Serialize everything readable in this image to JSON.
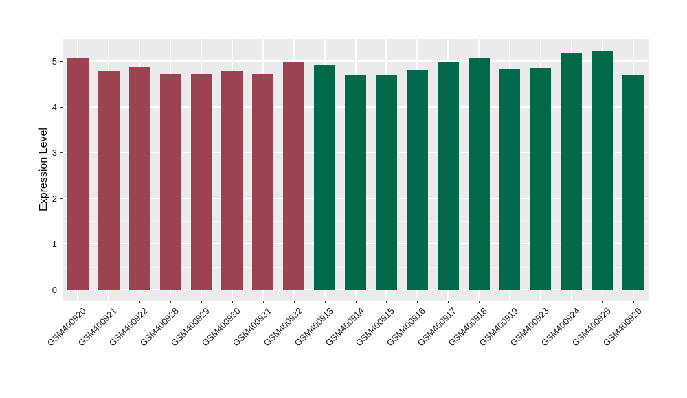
{
  "chart_data": {
    "type": "bar",
    "title": "",
    "xlabel": "",
    "ylabel": "Expression Level",
    "ylim": [
      0,
      5.46
    ],
    "yticks": [
      0,
      1,
      2,
      3,
      4,
      5
    ],
    "minor_yticks": [
      0.5,
      1.5,
      2.5,
      3.5,
      4.5
    ],
    "grid": true,
    "legend_position": "none",
    "categories": [
      "GSM400920",
      "GSM400921",
      "GSM400922",
      "GSM400928",
      "GSM400929",
      "GSM400930",
      "GSM400931",
      "GSM400932",
      "GSM400913",
      "GSM400914",
      "GSM400915",
      "GSM400916",
      "GSM400917",
      "GSM400918",
      "GSM400919",
      "GSM400923",
      "GSM400924",
      "GSM400925",
      "GSM400926"
    ],
    "values": [
      5.07,
      4.78,
      4.86,
      4.71,
      4.72,
      4.78,
      4.71,
      4.97,
      4.91,
      4.7,
      4.68,
      4.8,
      4.98,
      5.07,
      4.82,
      4.85,
      5.18,
      5.23,
      4.68
    ],
    "groups": [
      "group-1",
      "group-1",
      "group-1",
      "group-1",
      "group-1",
      "group-1",
      "group-1",
      "group-1",
      "group-2",
      "group-2",
      "group-2",
      "group-2",
      "group-2",
      "group-2",
      "group-2",
      "group-2",
      "group-2",
      "group-2",
      "group-2"
    ],
    "group_colors": {
      "group-1": "#9B4352",
      "group-2": "#00694A"
    },
    "panel_bg": "#EBEBEB",
    "grid_major_color": "#FFFFFF",
    "grid_minor_color": "#F5F5F5"
  }
}
